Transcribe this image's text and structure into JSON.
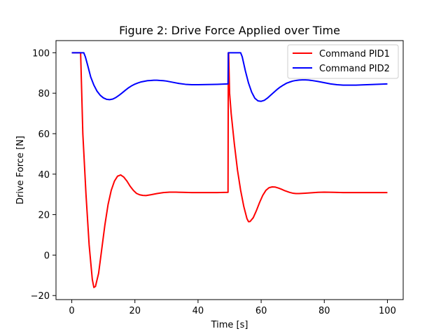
{
  "chart_data": {
    "type": "line",
    "title": "Figure 2: Drive Force Applied over Time",
    "xlabel": "Time [s]",
    "ylabel": "Drive Force [N]",
    "xlim": [
      -5,
      105
    ],
    "ylim": [
      -22,
      106
    ],
    "xticks": [
      0,
      20,
      40,
      60,
      80,
      100
    ],
    "yticks": [
      -20,
      0,
      20,
      40,
      60,
      80,
      100
    ],
    "grid": false,
    "legend_position": "upper-right",
    "series": [
      {
        "name": "Command PID1",
        "color": "#ff0000",
        "points": [
          [
            0,
            100
          ],
          [
            2.8,
            100
          ],
          [
            3.5,
            60
          ],
          [
            4.5,
            30
          ],
          [
            5.5,
            5
          ],
          [
            6.5,
            -12
          ],
          [
            7,
            -16
          ],
          [
            7.5,
            -15.5
          ],
          [
            8.5,
            -9
          ],
          [
            9.5,
            3
          ],
          [
            10.5,
            15
          ],
          [
            11.5,
            25
          ],
          [
            12.5,
            32
          ],
          [
            13.5,
            36.5
          ],
          [
            14.5,
            39
          ],
          [
            15.5,
            39.6
          ],
          [
            16.5,
            38.5
          ],
          [
            17.5,
            36.5
          ],
          [
            18.5,
            34
          ],
          [
            19.5,
            32
          ],
          [
            20.5,
            30.5
          ],
          [
            21.5,
            29.8
          ],
          [
            22.5,
            29.5
          ],
          [
            23.5,
            29.4
          ],
          [
            25,
            29.8
          ],
          [
            27,
            30.4
          ],
          [
            29,
            30.9
          ],
          [
            31,
            31.1
          ],
          [
            33,
            31.1
          ],
          [
            35,
            31
          ],
          [
            38,
            30.9
          ],
          [
            42,
            30.9
          ],
          [
            46,
            30.9
          ],
          [
            49.5,
            31
          ],
          [
            49.6,
            100
          ],
          [
            49.7,
            100
          ],
          [
            50,
            80
          ],
          [
            50.5,
            70
          ],
          [
            51.5,
            55
          ],
          [
            52.5,
            42
          ],
          [
            53.5,
            32
          ],
          [
            54.5,
            24
          ],
          [
            55.5,
            18
          ],
          [
            56,
            16.5
          ],
          [
            56.5,
            16.6
          ],
          [
            57.5,
            18.5
          ],
          [
            58.5,
            22
          ],
          [
            59.5,
            26
          ],
          [
            60.5,
            29.5
          ],
          [
            61.5,
            32
          ],
          [
            62.5,
            33.3
          ],
          [
            63.5,
            33.7
          ],
          [
            64.5,
            33.6
          ],
          [
            65.5,
            33.1
          ],
          [
            66.5,
            32.5
          ],
          [
            67.5,
            31.8
          ],
          [
            69,
            31
          ],
          [
            70,
            30.6
          ],
          [
            71,
            30.4
          ],
          [
            72,
            30.4
          ],
          [
            74,
            30.6
          ],
          [
            76,
            30.8
          ],
          [
            78,
            31
          ],
          [
            80,
            31.1
          ],
          [
            83,
            31
          ],
          [
            86,
            30.9
          ],
          [
            90,
            30.9
          ],
          [
            95,
            30.9
          ],
          [
            100,
            30.9
          ]
        ]
      },
      {
        "name": "Command PID2",
        "color": "#0000ff",
        "points": [
          [
            0,
            100
          ],
          [
            3.8,
            100
          ],
          [
            4.3,
            98
          ],
          [
            5,
            94
          ],
          [
            6,
            88
          ],
          [
            7,
            84
          ],
          [
            8,
            81
          ],
          [
            9,
            79
          ],
          [
            10,
            77.7
          ],
          [
            11,
            77
          ],
          [
            12,
            76.8
          ],
          [
            13,
            77.1
          ],
          [
            14,
            77.9
          ],
          [
            15,
            79
          ],
          [
            16,
            80.2
          ],
          [
            17,
            81.5
          ],
          [
            18,
            82.7
          ],
          [
            19,
            83.7
          ],
          [
            20,
            84.5
          ],
          [
            21,
            85.1
          ],
          [
            22,
            85.6
          ],
          [
            23,
            85.9
          ],
          [
            24,
            86.2
          ],
          [
            25,
            86.3
          ],
          [
            26,
            86.4
          ],
          [
            27,
            86.4
          ],
          [
            28,
            86.3
          ],
          [
            29,
            86.2
          ],
          [
            30,
            86
          ],
          [
            32,
            85.4
          ],
          [
            34,
            84.8
          ],
          [
            36,
            84.4
          ],
          [
            38,
            84.2
          ],
          [
            40,
            84.2
          ],
          [
            43,
            84.3
          ],
          [
            46,
            84.4
          ],
          [
            49.5,
            84.6
          ],
          [
            49.6,
            100
          ],
          [
            53.5,
            100
          ],
          [
            54,
            98
          ],
          [
            55,
            91
          ],
          [
            56,
            85
          ],
          [
            57,
            80.5
          ],
          [
            58,
            77.5
          ],
          [
            59,
            76.2
          ],
          [
            60,
            76
          ],
          [
            61,
            76.5
          ],
          [
            62,
            77.6
          ],
          [
            63,
            79
          ],
          [
            64,
            80.4
          ],
          [
            65,
            81.8
          ],
          [
            66,
            83
          ],
          [
            67,
            84
          ],
          [
            68,
            84.9
          ],
          [
            69,
            85.5
          ],
          [
            70,
            86
          ],
          [
            71,
            86.3
          ],
          [
            72,
            86.5
          ],
          [
            73,
            86.6
          ],
          [
            74,
            86.6
          ],
          [
            75,
            86.5
          ],
          [
            76,
            86.3
          ],
          [
            78,
            85.8
          ],
          [
            80,
            85.2
          ],
          [
            82,
            84.6
          ],
          [
            84,
            84.2
          ],
          [
            86,
            84
          ],
          [
            88,
            84
          ],
          [
            90,
            84
          ],
          [
            92,
            84.1
          ],
          [
            95,
            84.3
          ],
          [
            100,
            84.6
          ]
        ]
      }
    ]
  }
}
